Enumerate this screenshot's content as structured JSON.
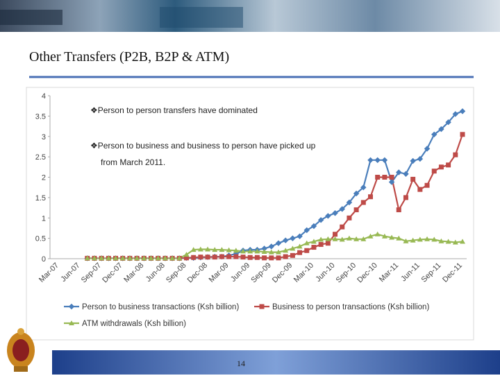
{
  "slide": {
    "title": "Other Transfers (P2B, B2P & ATM)",
    "page_number": "14"
  },
  "chart_data": {
    "type": "line",
    "annotations": [
      "❖Person to person transfers have dominated",
      "❖Person to business and business to person have picked up",
      "from March 2011."
    ],
    "categories": [
      "Mar-07",
      null,
      null,
      "Jun-07",
      null,
      null,
      "Sep-07",
      null,
      null,
      "Dec-07",
      null,
      null,
      "Mar-08",
      null,
      null,
      "Jun-08",
      null,
      null,
      "Sep-08",
      null,
      null,
      "Dec-08",
      null,
      null,
      "Mar-09",
      null,
      null,
      "Jun-09",
      null,
      null,
      "Sep-09",
      null,
      null,
      "Dec-09",
      null,
      null,
      "Mar-10",
      null,
      null,
      "Jun-10",
      null,
      null,
      "Sep-10",
      null,
      null,
      "Dec-10",
      null,
      null,
      "Mar-11",
      null,
      null,
      "Jun-11",
      null,
      null,
      "Sep-11",
      null,
      null,
      "Dec-11"
    ],
    "ylim": [
      0,
      4
    ],
    "yticks": [
      0,
      0.5,
      1,
      1.5,
      2,
      2.5,
      3,
      3.5,
      4
    ],
    "series": [
      {
        "name": "Person to business transactions (Ksh billion)",
        "color": "#4a7ebb",
        "marker": "diamond",
        "values": [
          null,
          null,
          null,
          null,
          0.01,
          0.01,
          0.01,
          0.01,
          0.01,
          0.01,
          0.01,
          0.01,
          0.01,
          0.01,
          0.01,
          0.01,
          0.01,
          0.01,
          0.02,
          0.02,
          0.03,
          0.04,
          0.05,
          0.05,
          0.08,
          0.12,
          0.2,
          0.22,
          0.22,
          0.25,
          0.3,
          0.38,
          0.45,
          0.5,
          0.55,
          0.7,
          0.8,
          0.95,
          1.05,
          1.12,
          1.22,
          1.38,
          1.6,
          1.75,
          2.42,
          2.42,
          2.42,
          1.88,
          2.12,
          2.08,
          2.4,
          2.45,
          2.7,
          3.05,
          3.18,
          3.35,
          3.55,
          3.62
        ]
      },
      {
        "name": "Business to person transactions (Ksh billion)",
        "color": "#be4b48",
        "marker": "square",
        "values": [
          null,
          null,
          null,
          null,
          0.01,
          0.01,
          0.01,
          0.01,
          0.01,
          0.01,
          0.01,
          0.01,
          0.01,
          0.01,
          0.01,
          0.01,
          0.01,
          0.01,
          0.02,
          0.03,
          0.04,
          0.04,
          0.04,
          0.05,
          0.05,
          0.05,
          0.04,
          0.03,
          0.03,
          0.02,
          0.02,
          0.02,
          0.05,
          0.08,
          0.15,
          0.2,
          0.28,
          0.35,
          0.38,
          0.6,
          0.78,
          1.0,
          1.2,
          1.38,
          1.52,
          2.0,
          2.0,
          2.0,
          1.2,
          1.5,
          1.95,
          1.7,
          1.8,
          2.15,
          2.25,
          2.3,
          2.55,
          3.05
        ]
      },
      {
        "name": "ATM withdrawals (Ksh billion)",
        "color": "#98b954",
        "marker": "triangle",
        "values": [
          null,
          null,
          null,
          null,
          0.01,
          0.01,
          0.01,
          0.01,
          0.01,
          0.01,
          0.01,
          0.01,
          0.01,
          0.01,
          0.01,
          0.01,
          0.01,
          0.01,
          0.1,
          0.22,
          0.23,
          0.23,
          0.22,
          0.22,
          0.21,
          0.2,
          0.18,
          0.18,
          0.18,
          0.17,
          0.16,
          0.16,
          0.2,
          0.25,
          0.3,
          0.38,
          0.42,
          0.47,
          0.48,
          0.48,
          0.47,
          0.5,
          0.48,
          0.48,
          0.55,
          0.6,
          0.55,
          0.52,
          0.5,
          0.43,
          0.45,
          0.47,
          0.48,
          0.47,
          0.43,
          0.42,
          0.4,
          0.42
        ]
      }
    ]
  }
}
